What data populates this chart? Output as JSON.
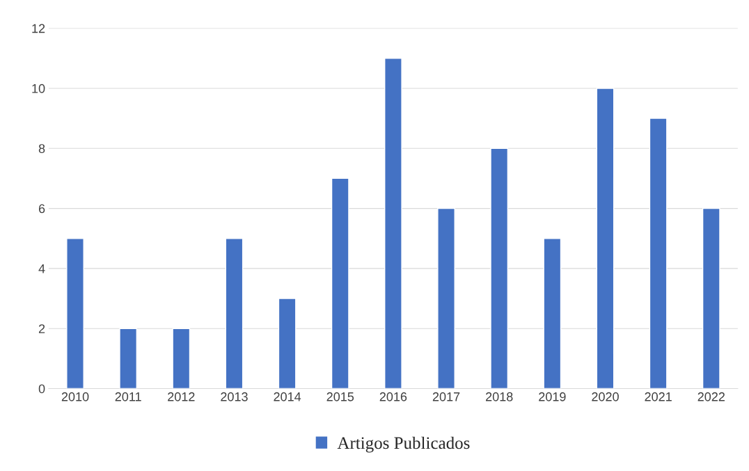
{
  "chart_data": {
    "type": "bar",
    "categories": [
      "2010",
      "2011",
      "2012",
      "2013",
      "2014",
      "2015",
      "2016",
      "2017",
      "2018",
      "2019",
      "2020",
      "2021",
      "2022"
    ],
    "series": [
      {
        "name": "Artigos Publicados",
        "color": "#4472c4",
        "values": [
          5,
          2,
          2,
          5,
          3,
          7,
          11,
          6,
          8,
          5,
          10,
          9,
          6
        ]
      }
    ],
    "ylim": [
      0,
      12
    ],
    "yticks": [
      0,
      2,
      4,
      6,
      8,
      10,
      12
    ],
    "grid": "y",
    "legend": "bottom"
  }
}
